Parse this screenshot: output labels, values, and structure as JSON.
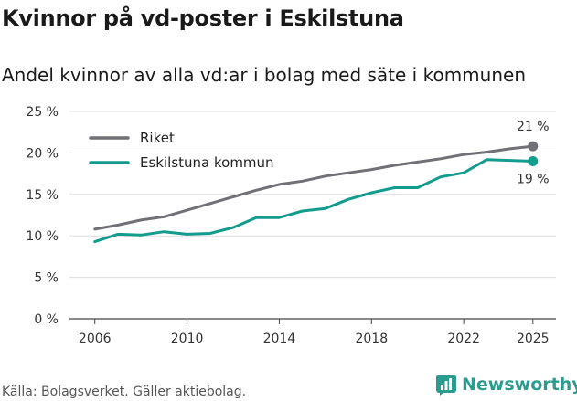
{
  "title": "Kvinnor på vd-poster i Eskilstuna",
  "subtitle": "Andel kvinnor av alla vd:ar i bolag med säte i kommunen",
  "source": "Källa: Bolagsverket. Gäller aktiebolag.",
  "brand": "Newsworthy",
  "chart_data": {
    "type": "line",
    "x": [
      2006,
      2007,
      2008,
      2009,
      2010,
      2011,
      2012,
      2013,
      2014,
      2015,
      2016,
      2017,
      2018,
      2019,
      2020,
      2021,
      2022,
      2023,
      2024,
      2025
    ],
    "series": [
      {
        "name": "Riket",
        "color": "#717076",
        "values": [
          10.8,
          11.3,
          11.9,
          12.3,
          13.1,
          13.9,
          14.7,
          15.5,
          16.2,
          16.6,
          17.2,
          17.6,
          18.0,
          18.5,
          18.9,
          19.3,
          19.8,
          20.1,
          20.5,
          20.8
        ],
        "end_label": "21 %"
      },
      {
        "name": "Eskilstuna kommun",
        "color": "#139c8e",
        "values": [
          9.3,
          10.2,
          10.1,
          10.5,
          10.2,
          10.3,
          11.0,
          12.2,
          12.2,
          13.0,
          13.3,
          14.4,
          15.2,
          15.8,
          15.8,
          17.1,
          17.6,
          19.2,
          19.1,
          19.0
        ],
        "end_label": "19 %"
      }
    ],
    "ylim": [
      0,
      25
    ],
    "yticks": [
      0,
      5,
      10,
      15,
      20,
      25
    ],
    "ytick_labels": [
      "0 %",
      "5 %",
      "10 %",
      "15 %",
      "20 %",
      "25 %"
    ],
    "xticks": [
      2006,
      2010,
      2014,
      2018,
      2022,
      2025
    ],
    "xtick_labels": [
      "2006",
      "2010",
      "2014",
      "2018",
      "2022",
      "2025"
    ],
    "legend_position": "top-left",
    "grid": true,
    "xlabel": "",
    "ylabel": ""
  }
}
